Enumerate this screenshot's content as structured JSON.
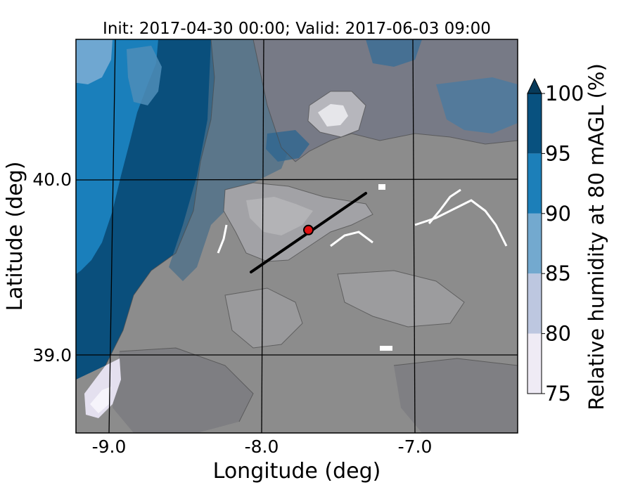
{
  "chart_data": {
    "type": "heatmap",
    "title": "Init: 2017-04-30 00:00; Valid: 2017-06-03 09:00",
    "xlabel": "Longitude (deg)",
    "ylabel": "Latitude (deg)",
    "xlim": [
      -9.25,
      -6.4
    ],
    "ylim": [
      38.55,
      40.8
    ],
    "x_ticks": [
      {
        "value": -9.0,
        "label": "-9.0"
      },
      {
        "value": -8.0,
        "label": "-8.0"
      },
      {
        "value": -7.0,
        "label": "-7.0"
      }
    ],
    "y_ticks": [
      {
        "value": 40.0,
        "label": "40.0"
      },
      {
        "value": 39.0,
        "label": "39.0"
      }
    ],
    "grid": true,
    "colorbar": {
      "label": "Relative humidity at 80 mAGL (%)",
      "extend": "max",
      "levels": [
        75,
        80,
        85,
        90,
        95,
        100
      ],
      "tick_labels": [
        "75",
        "80",
        "85",
        "90",
        "95",
        "100"
      ],
      "colors": [
        "#efebf5",
        "#bdc7e0",
        "#73a9cf",
        "#1c7fb9",
        "#08517f"
      ],
      "extend_color": "#073a5a"
    },
    "transect": {
      "start": [
        -8.12,
        39.47
      ],
      "end": [
        -7.38,
        39.92
      ]
    },
    "marker": {
      "lon": -7.75,
      "lat": 39.71,
      "color": "#e11010"
    },
    "terrain_mask_color": "#8e8e8e"
  }
}
